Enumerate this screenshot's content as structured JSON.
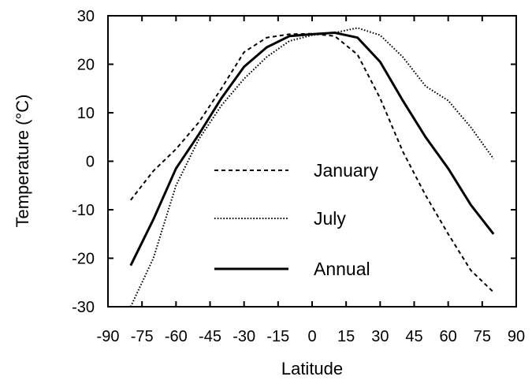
{
  "chart_data": {
    "type": "line",
    "xlabel": "Latitude",
    "ylabel": "Temperature (°C)",
    "xlim": [
      -90,
      90
    ],
    "ylim": [
      -30,
      30
    ],
    "x_ticks": [
      -90,
      -75,
      -60,
      -45,
      -30,
      -15,
      0,
      15,
      30,
      45,
      60,
      75,
      90
    ],
    "x_tick_labels": [
      "-90",
      "-75",
      "-60",
      "-45",
      "-30",
      "-15",
      "0",
      "15",
      "30",
      "45",
      "60",
      "75",
      "90"
    ],
    "y_ticks": [
      30,
      20,
      10,
      0,
      -10,
      -20,
      -30
    ],
    "y_tick_labels": [
      "30",
      "20",
      "10",
      "0",
      "-10",
      "-20",
      "-30"
    ],
    "grid": false,
    "legend_position": "center",
    "series": [
      {
        "name": "January",
        "style": "dashed",
        "x": [
          -80,
          -70,
          -60,
          -50,
          -40,
          -30,
          -20,
          -10,
          0,
          10,
          20,
          30,
          40,
          50,
          60,
          70,
          80
        ],
        "y": [
          -8,
          -2,
          2.5,
          8,
          15,
          22.5,
          25.5,
          26.2,
          26.3,
          25.8,
          22,
          13,
          2,
          -7,
          -15,
          -22.5,
          -27
        ]
      },
      {
        "name": "July",
        "style": "dotted",
        "x": [
          -80,
          -70,
          -60,
          -50,
          -40,
          -30,
          -20,
          -10,
          0,
          10,
          20,
          30,
          40,
          50,
          60,
          70,
          80
        ],
        "y": [
          -30,
          -20,
          -5,
          4.5,
          11.5,
          17,
          21.5,
          24.8,
          26,
          26.5,
          27.5,
          26,
          21.5,
          15.5,
          12.5,
          7,
          0.5
        ]
      },
      {
        "name": "Annual",
        "style": "solid",
        "x": [
          -80,
          -70,
          -60,
          -50,
          -40,
          -30,
          -20,
          -10,
          0,
          10,
          20,
          30,
          40,
          50,
          60,
          70,
          80
        ],
        "y": [
          -21.5,
          -12,
          -1.5,
          5.5,
          13,
          19.5,
          23.5,
          25.8,
          26.2,
          26.5,
          25.5,
          20.5,
          12.5,
          5,
          -1.5,
          -9,
          -15
        ]
      }
    ]
  }
}
